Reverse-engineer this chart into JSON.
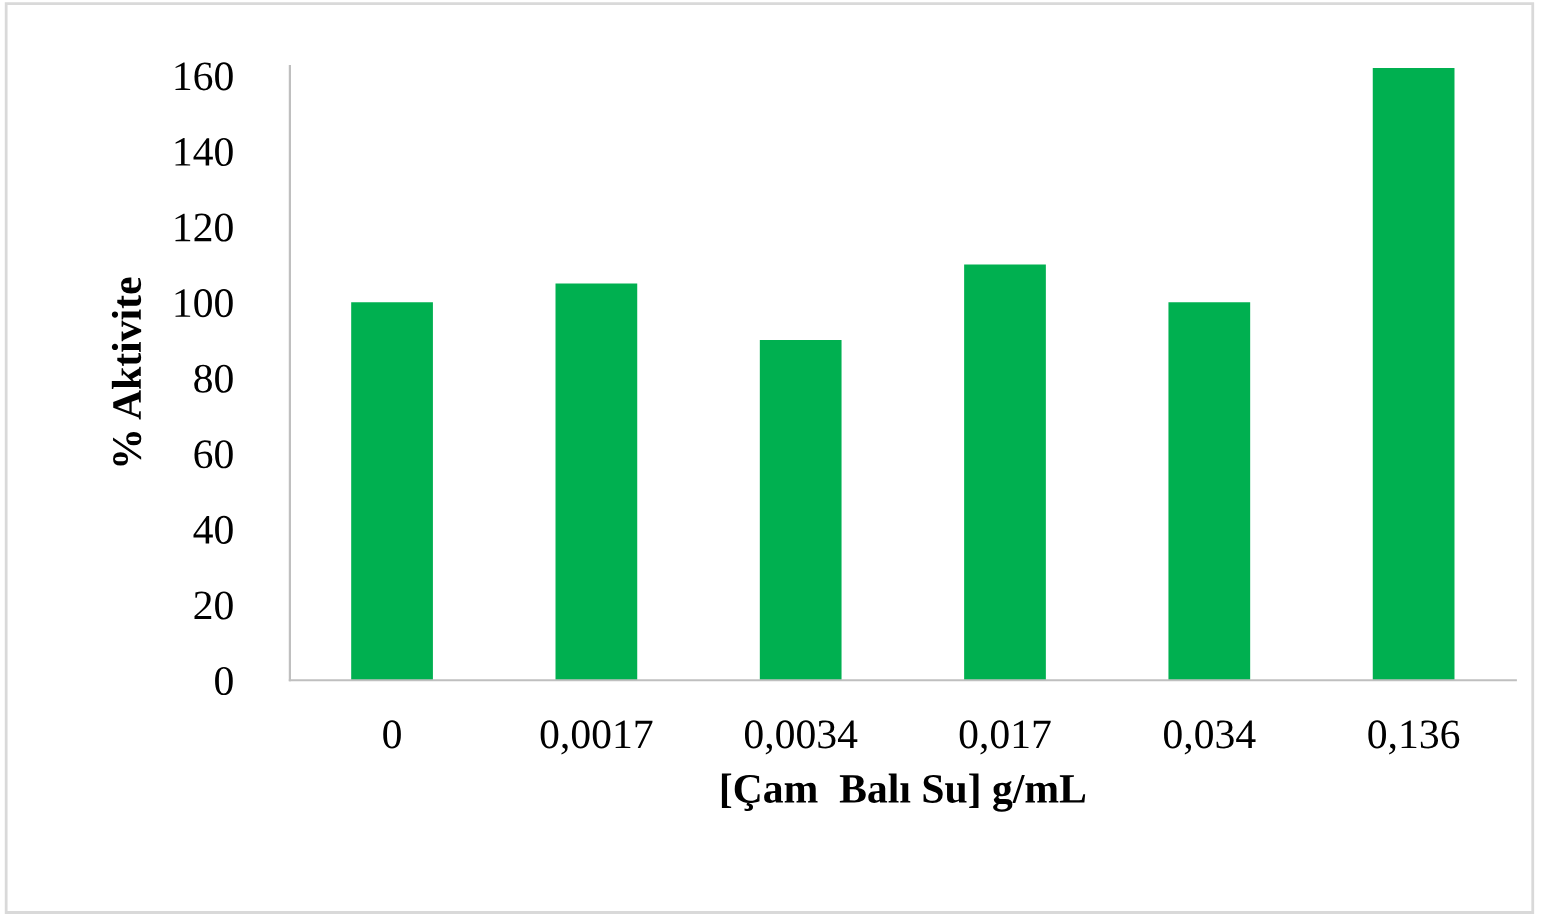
{
  "chart_data": {
    "type": "bar",
    "xlabel": "[Çam  Balı Su] g/mL",
    "ylabel": "% Aktivite",
    "categories": [
      "0",
      "0,0017",
      "0,0034",
      "0,017",
      "0,034",
      "0,136"
    ],
    "values": [
      100,
      105,
      90,
      110,
      100,
      162
    ],
    "color": "#00b050",
    "ylim": [
      0,
      162.5
    ],
    "yticks": [
      0,
      20,
      40,
      60,
      80,
      100,
      120,
      140,
      160
    ],
    "grid": false,
    "legend": false
  }
}
